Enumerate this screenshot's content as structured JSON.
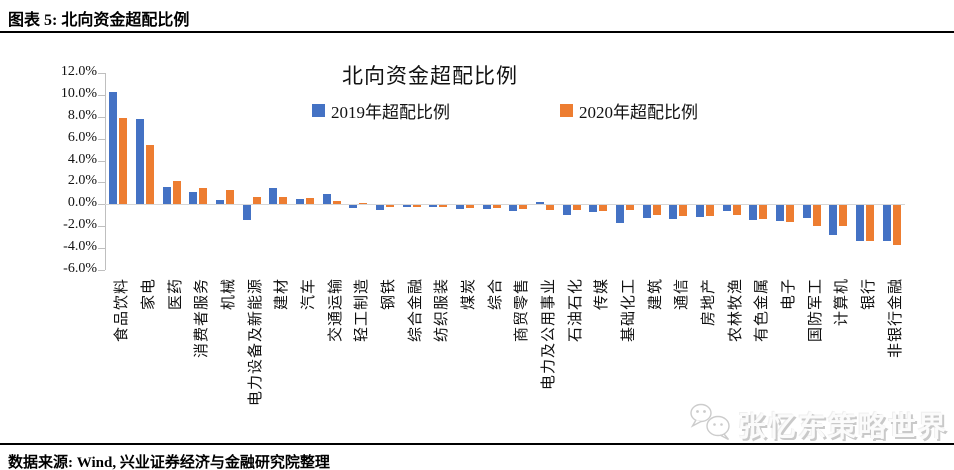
{
  "header": {
    "title": "图表 5: 北向资金超配比例"
  },
  "footer": {
    "source": "数据来源: Wind, 兴业证券经济与金融研究院整理"
  },
  "watermark": {
    "icon": "wechat-icon",
    "text": "张忆东策略世界"
  },
  "chart_data": {
    "type": "bar",
    "title": "北向资金超配比例",
    "xlabel": "",
    "ylabel": "",
    "ylim": [
      -6,
      12
    ],
    "ytick_step": 2,
    "ytick_labels": [
      "12.0%",
      "10.0%",
      "8.0%",
      "6.0%",
      "4.0%",
      "2.0%",
      "0.0%",
      "-2.0%",
      "-4.0%",
      "-6.0%"
    ],
    "grid": false,
    "legend_position": "top",
    "axis_color": "#bfbfbf",
    "categories": [
      "食品饮料",
      "家电",
      "医药",
      "消费者服务",
      "机械",
      "电力设备及新能源",
      "建材",
      "汽车",
      "交通运输",
      "轻工制造",
      "钢铁",
      "综合金融",
      "纺织服装",
      "煤炭",
      "综合",
      "商贸零售",
      "电力及公用事业",
      "石油石化",
      "传媒",
      "基础化工",
      "建筑",
      "通信",
      "房地产",
      "农林牧渔",
      "有色金属",
      "电子",
      "国防军工",
      "计算机",
      "银行",
      "非银行金融"
    ],
    "series": [
      {
        "name": "2019年超配比例",
        "color": "#4472C4",
        "values": [
          10.3,
          7.8,
          1.6,
          1.1,
          0.4,
          -1.3,
          1.5,
          0.5,
          0.9,
          -0.2,
          -0.4,
          -0.15,
          -0.1,
          -0.3,
          -0.3,
          -0.5,
          0.2,
          -0.85,
          -0.6,
          -1.6,
          -1.2,
          -1.25,
          -1.1,
          -0.55,
          -1.3,
          -1.4,
          -1.15,
          -2.7,
          -3.3,
          -3.3
        ]
      },
      {
        "name": "2020年超配比例",
        "color": "#ED7D31",
        "values": [
          7.9,
          5.4,
          2.1,
          1.5,
          1.3,
          0.7,
          0.7,
          0.6,
          0.3,
          0.15,
          -0.05,
          -0.1,
          -0.1,
          -0.25,
          -0.2,
          -0.35,
          -0.4,
          -0.45,
          -0.5,
          -0.45,
          -0.9,
          -0.95,
          -0.95,
          -0.9,
          -1.25,
          -1.55,
          -1.85,
          -1.85,
          -3.3,
          -3.6
        ]
      }
    ]
  }
}
